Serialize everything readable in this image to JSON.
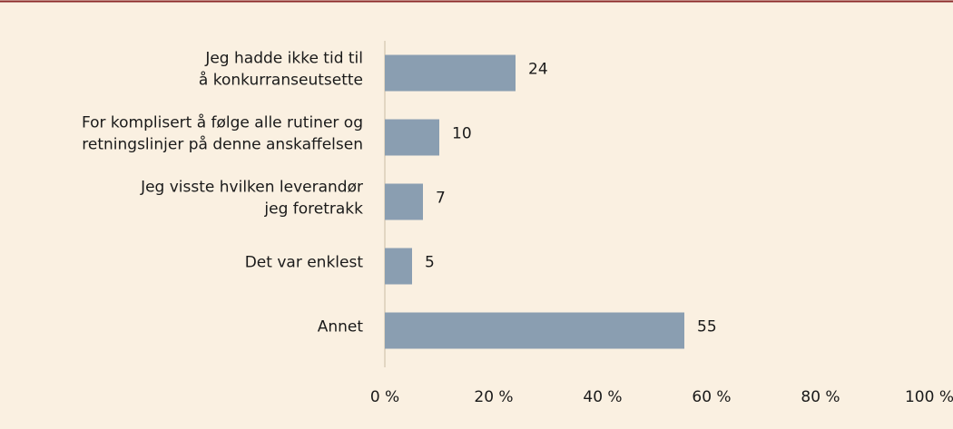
{
  "chart_data": {
    "type": "bar",
    "orientation": "horizontal",
    "categories": [
      [
        "Jeg hadde ikke tid til",
        "å konkurranseutsette"
      ],
      [
        "For komplisert å følge alle rutiner og",
        "retningslinjer på denne anskaffelsen"
      ],
      [
        "Jeg visste hvilken leverandør",
        "jeg foretrakk"
      ],
      [
        "Det var enklest"
      ],
      [
        "Annet"
      ]
    ],
    "values": [
      24,
      10,
      7,
      5,
      55
    ],
    "color": "#8a9eb1",
    "xlim": [
      0,
      100
    ],
    "xticks": [
      {
        "value": 0,
        "label": "0 %"
      },
      {
        "value": 20,
        "label": "20 %"
      },
      {
        "value": 40,
        "label": "40 %"
      },
      {
        "value": 60,
        "label": "60 %"
      },
      {
        "value": 80,
        "label": "80 %"
      },
      {
        "value": 100,
        "label": "100 %"
      }
    ],
    "grid": false
  }
}
